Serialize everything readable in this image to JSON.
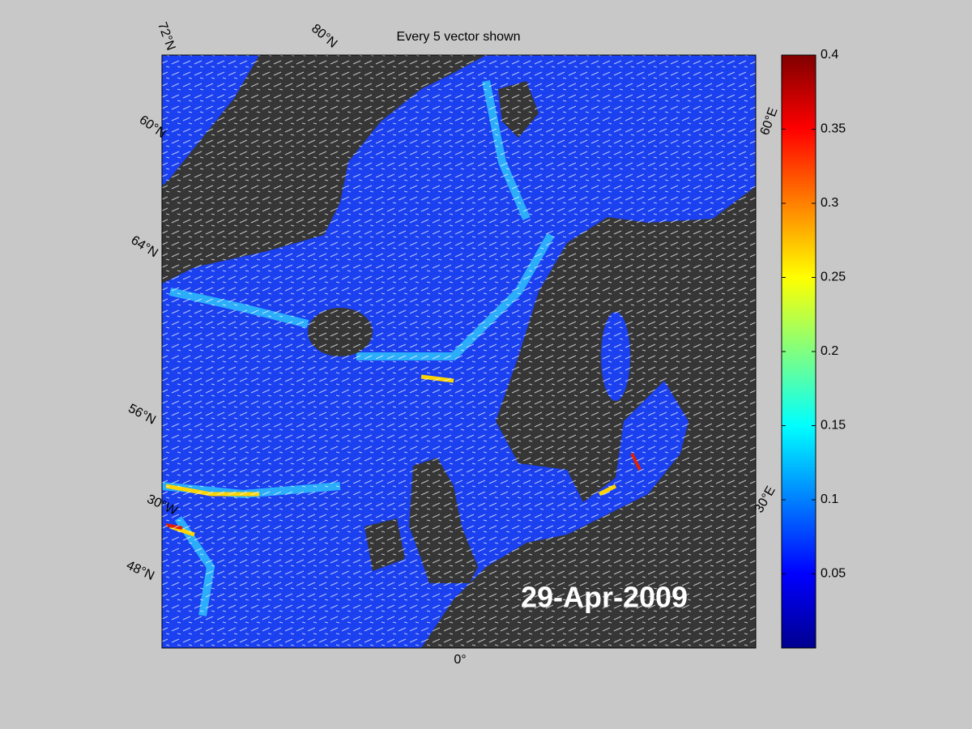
{
  "title": "Every 5 vector shown",
  "date_label": "29-Apr-2009",
  "graticule_labels": [
    "72°N",
    "80°N",
    "60°N",
    "64°N",
    "56°N",
    "30°W",
    "48°N",
    "0°",
    "30°E",
    "60°E"
  ],
  "colorbar": {
    "colormap": "jet",
    "lim": [
      0,
      0.4
    ],
    "ticks": [
      0.05,
      0.1,
      0.15,
      0.2,
      0.25,
      0.3,
      0.35,
      0.4
    ]
  }
}
